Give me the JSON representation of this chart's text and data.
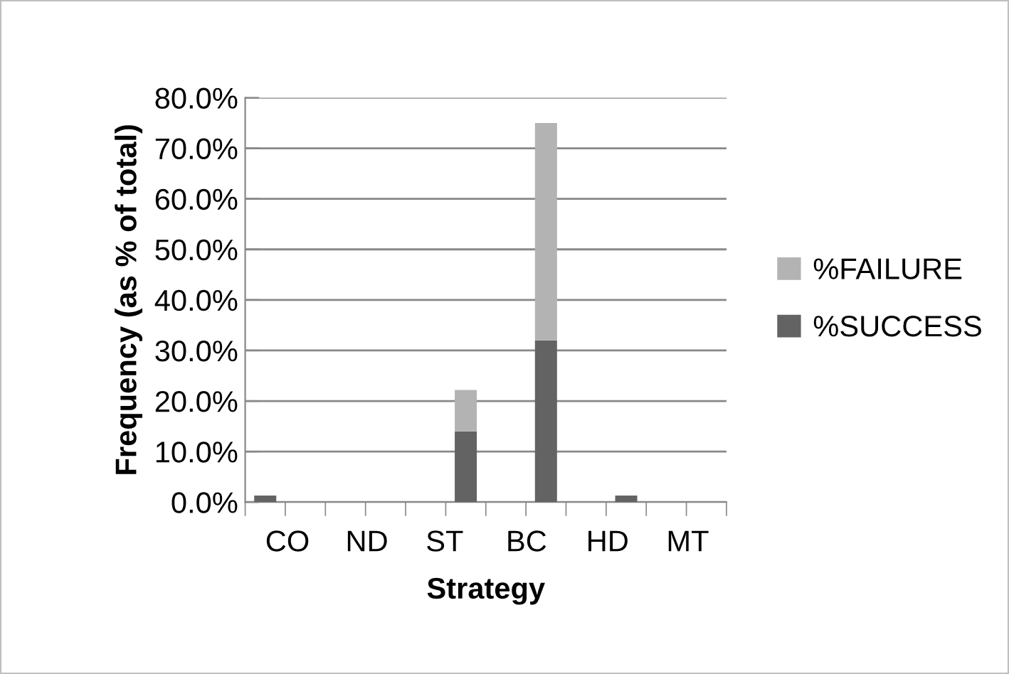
{
  "chart_data": {
    "type": "bar",
    "stacked": true,
    "xlabel": "Strategy",
    "ylabel": "Frequency (as % of total)",
    "categories": [
      "CO",
      null,
      "ND",
      null,
      "ST",
      null,
      "BC",
      null,
      "HD",
      null,
      "MT",
      null
    ],
    "series": [
      {
        "name": "%SUCCESS",
        "color": "#636363",
        "values": [
          1.3,
          0,
          0,
          0,
          0,
          14.0,
          0,
          32.0,
          0,
          1.3,
          0,
          0
        ]
      },
      {
        "name": "%FAILURE",
        "color": "#b3b3b3",
        "values": [
          0,
          0,
          0,
          0,
          0,
          8.2,
          0,
          43.0,
          0,
          0,
          0,
          0
        ]
      }
    ],
    "ylim": [
      0,
      80
    ],
    "yticks": [
      {
        "value": 0,
        "label": "0.0%"
      },
      {
        "value": 10,
        "label": "10.0%"
      },
      {
        "value": 20,
        "label": "20.0%"
      },
      {
        "value": 30,
        "label": "30.0%"
      },
      {
        "value": 40,
        "label": "40.0%"
      },
      {
        "value": 50,
        "label": "50.0%"
      },
      {
        "value": 60,
        "label": "60.0%"
      },
      {
        "value": 70,
        "label": "70.0%"
      },
      {
        "value": 80,
        "label": "80.0%"
      }
    ],
    "grid": "y",
    "legend": "right"
  }
}
